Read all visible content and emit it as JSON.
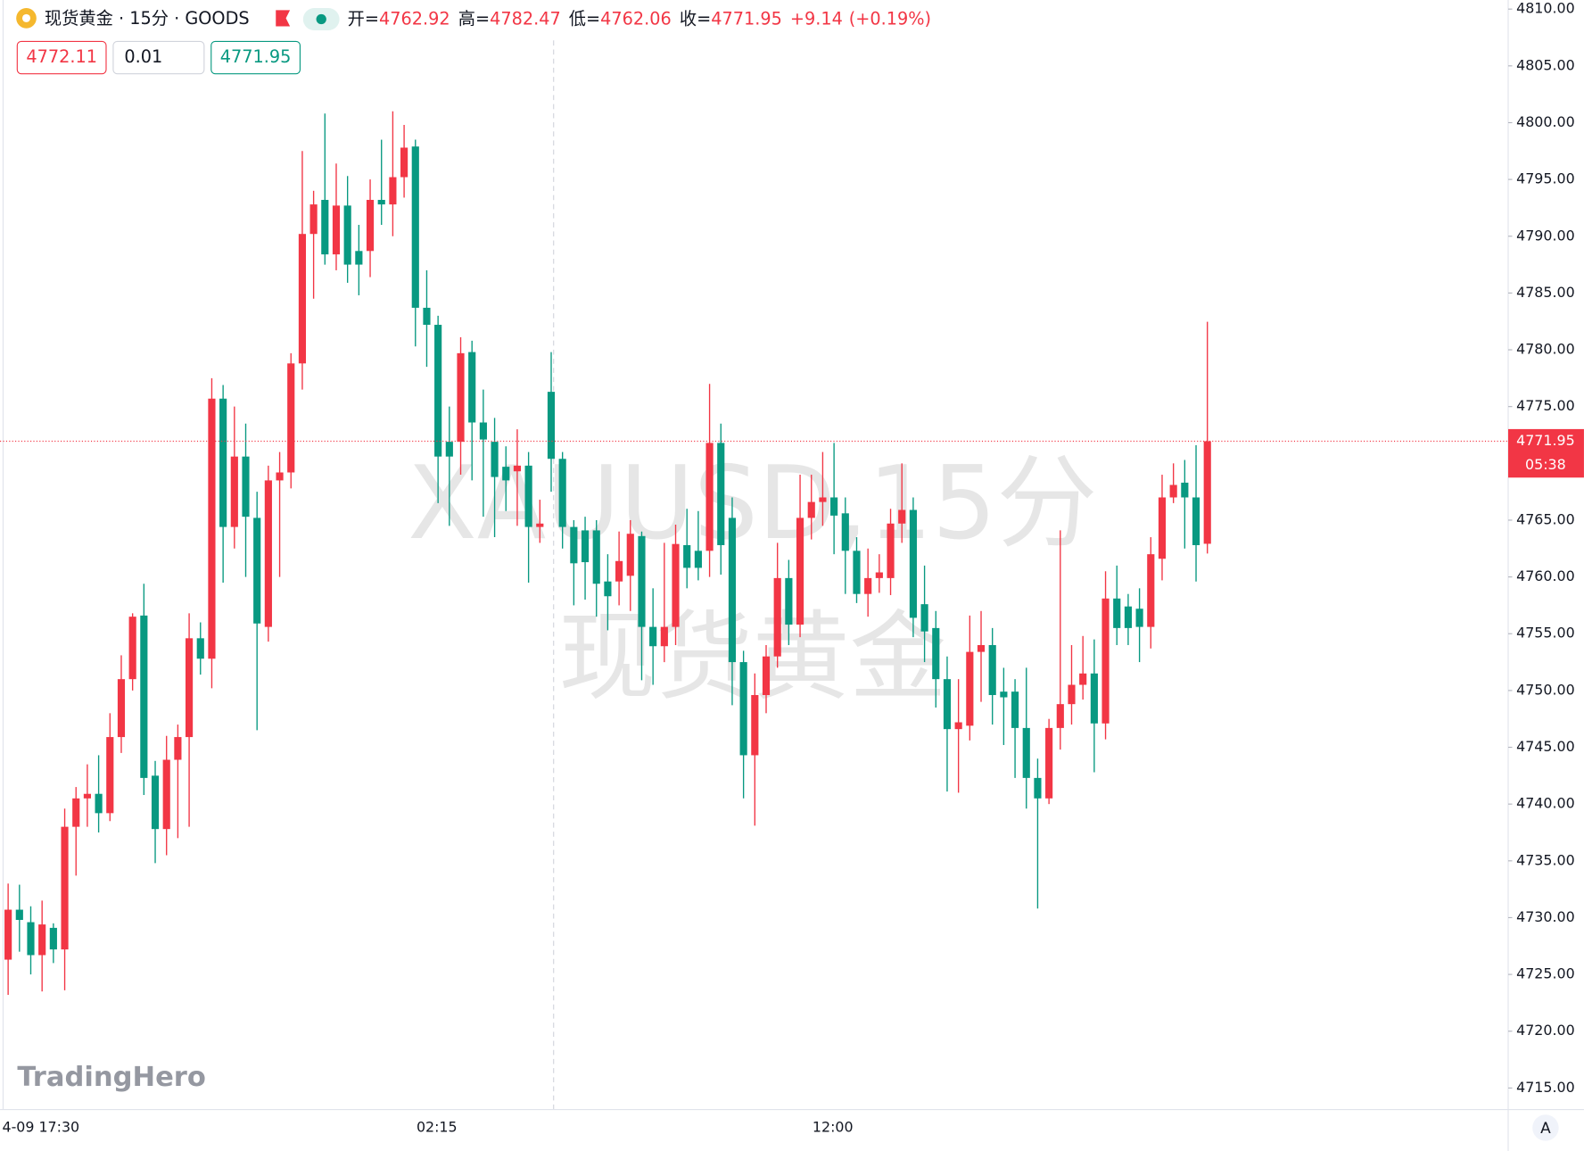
{
  "header": {
    "title": "现货黄金 · 15分 · GOODS",
    "ohlc": [
      {
        "label": "开=",
        "value": "4762.92"
      },
      {
        "label": "高=",
        "value": "4782.47"
      },
      {
        "label": "低=",
        "value": "4762.06"
      },
      {
        "label": "收=",
        "value": "4771.95"
      }
    ],
    "change": "+9.14",
    "change_pct": "(+0.19%)",
    "sell": "4772.11",
    "spread": "0.01",
    "buy": "4771.95"
  },
  "watermark": [
    "XAUUSD,15分",
    "现货黄金"
  ],
  "logo": "TradingHero",
  "axis_button": "A",
  "countdown": "05:38",
  "chart_data": {
    "type": "candlestick",
    "categories": [
      null,
      null,
      "4-09 17:30",
      null,
      null,
      null,
      null,
      null,
      null,
      null,
      null,
      null,
      null,
      null,
      null,
      null,
      null,
      null,
      null,
      null,
      null,
      null,
      null,
      null,
      null,
      null,
      null,
      null,
      null,
      null,
      null,
      null,
      null,
      null,
      null,
      null,
      null,
      "02:15",
      null,
      null,
      null,
      null,
      null,
      null,
      null,
      null,
      null,
      null,
      null,
      null,
      null,
      null,
      null,
      null,
      null,
      null,
      null,
      null,
      null,
      null,
      null,
      null,
      null,
      null,
      null,
      null,
      null,
      null,
      null,
      null,
      null,
      null,
      "12:00",
      null,
      null,
      null,
      null,
      null,
      null,
      null,
      null,
      null,
      null,
      null,
      null,
      null,
      null,
      null,
      null,
      null,
      null,
      null,
      null,
      null,
      null,
      null,
      null,
      null,
      null,
      null,
      null,
      null,
      null,
      null,
      null,
      null,
      null
    ],
    "open": [
      4726.3,
      4730.7,
      4729.6,
      4726.7,
      4729.1,
      4727.2,
      4738.0,
      4740.5,
      4740.9,
      4739.2,
      4745.9,
      4751.0,
      4756.6,
      4742.5,
      4737.8,
      4743.9,
      4745.9,
      4754.6,
      4752.8,
      4775.7,
      4764.4,
      4770.6,
      4765.2,
      4755.6,
      4768.5,
      4769.2,
      4778.8,
      4790.2,
      4793.2,
      4788.4,
      4792.7,
      4788.7,
      4788.7,
      4793.2,
      4792.8,
      4795.2,
      4797.9,
      4783.7,
      4782.2,
      4771.9,
      4771.9,
      4779.8,
      4773.6,
      4771.9,
      4769.7,
      4769.3,
      4769.8,
      4764.4,
      4776.3,
      4770.4,
      4764.4,
      4764.1,
      4764.1,
      4759.6,
      4759.6,
      4760.1,
      4763.6,
      4755.6,
      4753.9,
      4755.6,
      4762.8,
      4762.3,
      4762.3,
      4771.8,
      4765.2,
      4752.5,
      4744.3,
      4749.6,
      4753.0,
      4759.9,
      4755.8,
      4765.2,
      4766.6,
      4767.0,
      4765.6,
      4762.3,
      4758.5,
      4759.9,
      4759.9,
      4764.7,
      4765.9,
      4757.6,
      4755.5,
      4751.0,
      4746.6,
      4746.9,
      4753.4,
      4754.0,
      4749.9,
      4749.9,
      4746.7,
      4742.3,
      4740.5,
      4746.7,
      4748.8,
      4750.5,
      4751.5,
      4747.1,
      4758.1,
      4757.4,
      4757.2,
      4755.6,
      4761.6,
      4767.0,
      4768.3,
      4767.0,
      4762.92
    ],
    "high": [
      4733.0,
      4732.9,
      4731.0,
      4731.5,
      4729.5,
      4739.6,
      4741.5,
      4743.5,
      4744.3,
      4748.0,
      4753.1,
      4756.8,
      4759.4,
      4743.8,
      4746.0,
      4747.0,
      4756.8,
      4756.0,
      4777.5,
      4776.9,
      4775.0,
      4773.5,
      4767.5,
      4769.8,
      4771.0,
      4779.7,
      4797.5,
      4794.0,
      4800.8,
      4796.4,
      4795.3,
      4791.0,
      4795.0,
      4798.5,
      4801.0,
      4799.8,
      4798.5,
      4787.0,
      4783.0,
      4775.0,
      4781.1,
      4780.8,
      4776.5,
      4774.0,
      4771.5,
      4773.0,
      4771.0,
      4766.8,
      4779.8,
      4771.0,
      4765.0,
      4765.3,
      4765.0,
      4762.0,
      4764.0,
      4765.0,
      4764.0,
      4759.0,
      4763.0,
      4764.6,
      4766.0,
      4765.8,
      4777.0,
      4773.5,
      4767.0,
      4753.5,
      4751.5,
      4754.0,
      4763.0,
      4761.5,
      4769.0,
      4769.0,
      4771.0,
      4771.8,
      4767.0,
      4763.5,
      4762.5,
      4762.0,
      4766.0,
      4770.0,
      4767.0,
      4761.0,
      4757.0,
      4753.0,
      4751.0,
      4756.6,
      4757.0,
      4755.5,
      4752.0,
      4751.0,
      4752.0,
      4744.0,
      4747.5,
      4764.1,
      4754.0,
      4754.8,
      4754.5,
      4760.5,
      4761.0,
      4758.5,
      4759.0,
      4763.5,
      4769.0,
      4770.0,
      4770.3,
      4771.6,
      4782.47
    ],
    "low": [
      4723.2,
      4727.0,
      4725.0,
      4723.5,
      4726.0,
      4723.6,
      4733.7,
      4738.0,
      4737.5,
      4738.5,
      4744.5,
      4750.0,
      4740.8,
      4734.8,
      4735.5,
      4737.0,
      4738.0,
      4751.4,
      4750.2,
      4759.5,
      4762.5,
      4760.0,
      4746.5,
      4754.3,
      4760.0,
      4767.8,
      4776.5,
      4784.5,
      4787.5,
      4787.0,
      4785.9,
      4784.8,
      4786.4,
      4791.0,
      4790.0,
      4793.4,
      4780.3,
      4778.5,
      4766.5,
      4764.5,
      4769.0,
      4768.5,
      4765.3,
      4763.5,
      4765.8,
      4764.5,
      4759.5,
      4763.0,
      4767.5,
      4762.5,
      4757.5,
      4758.0,
      4756.5,
      4755.3,
      4757.5,
      4757.0,
      4750.9,
      4750.5,
      4752.5,
      4754.0,
      4759.0,
      4759.7,
      4760.0,
      4760.2,
      4748.7,
      4740.5,
      4738.1,
      4748.0,
      4752.0,
      4754.0,
      4754.7,
      4763.3,
      4764.5,
      4762.0,
      4758.5,
      4757.7,
      4756.5,
      4758.6,
      4758.4,
      4763.0,
      4754.7,
      4752.5,
      4748.5,
      4741.1,
      4741.0,
      4745.6,
      4749.0,
      4747.0,
      4745.2,
      4742.3,
      4739.6,
      4730.8,
      4740.0,
      4744.8,
      4747.0,
      4749.2,
      4742.8,
      4745.7,
      4754.0,
      4754.0,
      4752.5,
      4753.7,
      4759.7,
      4766.5,
      4762.5,
      4759.6,
      4762.06
    ],
    "close": [
      4730.7,
      4729.8,
      4726.7,
      4729.4,
      4727.2,
      4738.0,
      4740.5,
      4740.9,
      4739.2,
      4745.9,
      4751.0,
      4756.5,
      4742.3,
      4737.8,
      4743.9,
      4745.9,
      4754.6,
      4752.8,
      4775.7,
      4764.4,
      4770.6,
      4765.3,
      4755.9,
      4768.5,
      4769.2,
      4778.8,
      4790.2,
      4792.8,
      4788.4,
      4792.7,
      4787.5,
      4787.5,
      4793.2,
      4792.8,
      4795.2,
      4797.8,
      4783.7,
      4782.2,
      4770.6,
      4770.6,
      4779.7,
      4773.6,
      4772.1,
      4768.8,
      4768.5,
      4769.8,
      4764.4,
      4764.7,
      4770.4,
      4764.4,
      4761.2,
      4761.3,
      4759.4,
      4758.3,
      4761.4,
      4763.8,
      4755.6,
      4753.9,
      4755.6,
      4762.9,
      4760.8,
      4760.8,
      4771.8,
      4762.8,
      4752.5,
      4744.3,
      4749.6,
      4753.0,
      4759.9,
      4755.8,
      4765.2,
      4766.6,
      4767.0,
      4765.4,
      4762.3,
      4758.5,
      4759.9,
      4760.4,
      4764.7,
      4765.9,
      4756.4,
      4755.2,
      4751.0,
      4746.6,
      4747.2,
      4753.4,
      4754.0,
      4749.6,
      4749.4,
      4746.7,
      4742.3,
      4740.5,
      4746.7,
      4748.8,
      4750.5,
      4751.5,
      4747.1,
      4758.1,
      4755.5,
      4755.5,
      4755.6,
      4762.0,
      4767.0,
      4768.1,
      4767.0,
      4762.8,
      4771.95
    ],
    "up_color": "#f23645",
    "down_color": "#089981",
    "last_price": 4771.95,
    "ylim": [
      4713.1,
      4810.8
    ],
    "yticks": [
      {
        "value": 4715,
        "label": "4715.00"
      },
      {
        "value": 4720,
        "label": "4720.00"
      },
      {
        "value": 4725,
        "label": "4725.00"
      },
      {
        "value": 4730,
        "label": "4730.00"
      },
      {
        "value": 4735,
        "label": "4735.00"
      },
      {
        "value": 4740,
        "label": "4740.00"
      },
      {
        "value": 4745,
        "label": "4745.00"
      },
      {
        "value": 4750,
        "label": "4750.00"
      },
      {
        "value": 4755,
        "label": "4755.00"
      },
      {
        "value": 4760,
        "label": "4760.00"
      },
      {
        "value": 4765,
        "label": "4765.00"
      },
      {
        "value": 4770,
        "label": "4770.00"
      },
      {
        "value": 4775,
        "label": "4775.00"
      },
      {
        "value": 4780,
        "label": "4780.00"
      },
      {
        "value": 4785,
        "label": "4785.00"
      },
      {
        "value": 4790,
        "label": "4790.00"
      },
      {
        "value": 4795,
        "label": "4795.00"
      },
      {
        "value": 4800,
        "label": "4800.00"
      },
      {
        "value": 4805,
        "label": "4805.00"
      },
      {
        "value": 4810,
        "label": "4810.00"
      }
    ],
    "grid": false
  }
}
